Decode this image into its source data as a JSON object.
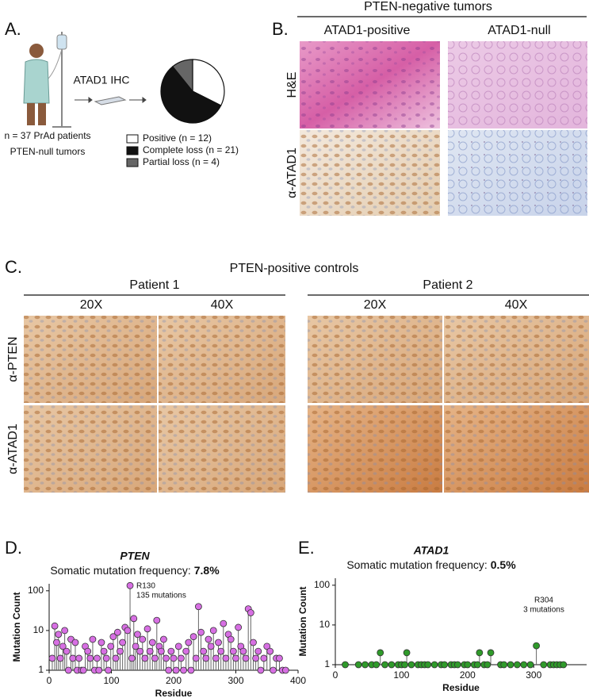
{
  "panel_a": {
    "label": "A.",
    "arrow_label": "ATAD1 IHC",
    "cohort": [
      "n = 37 PrAd patients",
      "PTEN-null tumors"
    ]
  },
  "panel_b": {
    "label": "B.",
    "title": "PTEN-negative tumors",
    "columns": [
      "ATAD1-positive",
      "ATAD1-null"
    ],
    "rows": [
      "H&E",
      "α-ATAD1"
    ]
  },
  "panel_c": {
    "label": "C.",
    "title": "PTEN-positive controls",
    "patients": [
      {
        "name": "Patient 1",
        "columns": [
          "20X",
          "40X"
        ]
      },
      {
        "name": "Patient 2",
        "columns": [
          "20X",
          "40X"
        ]
      }
    ],
    "rows": [
      "α-PTEN",
      "α-ATAD1"
    ]
  },
  "panel_d": {
    "label": "D."
  },
  "panel_e": {
    "label": "E."
  },
  "chart_data": [
    {
      "type": "pie",
      "categories": [
        "Positive (n = 12)",
        "Complete loss (n = 21)",
        "Partial loss (n = 4)"
      ],
      "values": [
        12,
        21,
        4
      ],
      "colors": [
        "#ffffff",
        "#111111",
        "#666666"
      ]
    },
    {
      "type": "lollipop",
      "title": "PTEN",
      "subtitle": "Somatic mutation frequency:",
      "subtitle_value": "7.8%",
      "xlabel": "Residue",
      "ylabel": "Mutation Count",
      "log_y": true,
      "color": "#d76fe3",
      "annotation": [
        "R130",
        "135 mutations"
      ],
      "x": [
        5,
        9,
        12,
        15,
        18,
        22,
        25,
        28,
        31,
        35,
        38,
        42,
        45,
        48,
        52,
        55,
        58,
        62,
        66,
        70,
        73,
        77,
        80,
        84,
        88,
        92,
        95,
        99,
        103,
        107,
        110,
        114,
        118,
        122,
        126,
        130,
        133,
        136,
        139,
        142,
        146,
        150,
        154,
        158,
        162,
        166,
        170,
        173,
        177,
        180,
        184,
        188,
        192,
        196,
        200,
        204,
        208,
        212,
        216,
        220,
        224,
        228,
        232,
        236,
        240,
        244,
        248,
        252,
        256,
        260,
        264,
        268,
        272,
        276,
        280,
        284,
        288,
        292,
        296,
        300,
        304,
        308,
        312,
        316,
        320,
        324,
        328,
        332,
        336,
        340,
        345,
        350,
        355,
        360,
        365,
        370,
        375,
        380
      ],
      "values": [
        2,
        13,
        5,
        8,
        2,
        4,
        10,
        3,
        1,
        6,
        2,
        5,
        1,
        2,
        1,
        1,
        4,
        3,
        2,
        6,
        1,
        2,
        1,
        5,
        3,
        2,
        1,
        4,
        7,
        2,
        9,
        3,
        5,
        12,
        10,
        135,
        2,
        20,
        4,
        8,
        3,
        6,
        2,
        11,
        3,
        5,
        2,
        18,
        4,
        3,
        6,
        2,
        1,
        3,
        2,
        1,
        4,
        2,
        1,
        3,
        5,
        1,
        7,
        2,
        40,
        9,
        3,
        2,
        6,
        4,
        10,
        2,
        5,
        3,
        15,
        2,
        8,
        6,
        3,
        2,
        12,
        4,
        3,
        2,
        35,
        28,
        5,
        2,
        3,
        1,
        2,
        4,
        3,
        1,
        2,
        2,
        1,
        1
      ],
      "xlim": [
        0,
        400
      ],
      "xticks": [
        0,
        100,
        200,
        300,
        400
      ],
      "ylim": [
        1,
        150
      ],
      "yticks": [
        1,
        10,
        100
      ]
    },
    {
      "type": "lollipop",
      "title": "ATAD1",
      "subtitle": "Somatic mutation frequency:",
      "subtitle_value": "0.5%",
      "xlabel": "Residue",
      "ylabel": "Mutation Count",
      "log_y": true,
      "color": "#2f9a2a",
      "annotation": [
        "R304",
        "3 mutations"
      ],
      "x": [
        15,
        35,
        45,
        55,
        62,
        68,
        75,
        85,
        95,
        100,
        105,
        108,
        115,
        125,
        130,
        135,
        140,
        150,
        160,
        165,
        175,
        180,
        185,
        195,
        200,
        210,
        215,
        218,
        225,
        230,
        235,
        250,
        255,
        265,
        275,
        285,
        295,
        304,
        315,
        325,
        330,
        335,
        340,
        345
      ],
      "values": [
        1,
        1,
        1,
        1,
        1,
        2,
        1,
        1,
        1,
        1,
        1,
        2,
        1,
        1,
        1,
        1,
        1,
        1,
        1,
        1,
        1,
        1,
        1,
        1,
        1,
        1,
        1,
        2,
        1,
        1,
        2,
        1,
        1,
        1,
        1,
        1,
        1,
        3,
        1,
        1,
        1,
        1,
        1,
        1
      ],
      "xlim": [
        0,
        380
      ],
      "xticks": [
        0,
        100,
        200,
        300
      ],
      "ylim": [
        1,
        150
      ],
      "yticks": [
        1,
        10,
        100
      ]
    }
  ]
}
